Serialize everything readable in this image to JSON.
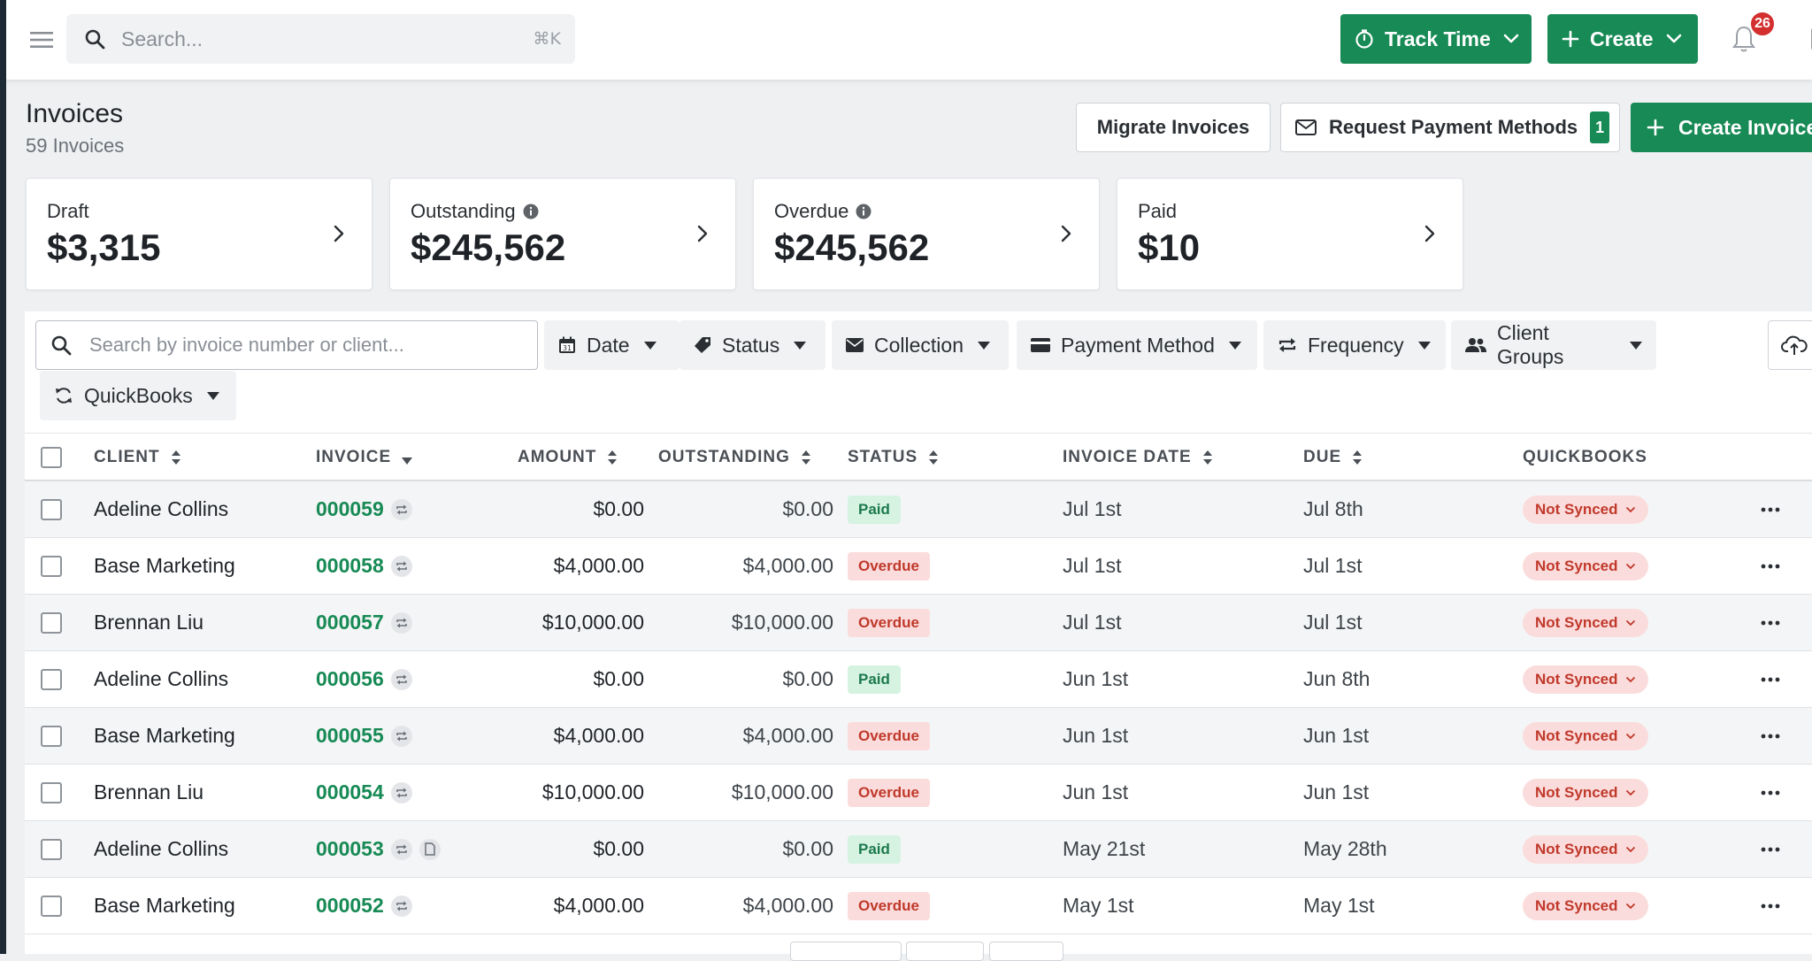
{
  "topbar": {
    "search_placeholder": "Search...",
    "search_shortcut": "⌘K",
    "track_time_label": "Track Time",
    "create_label": "Create",
    "notification_count": "26"
  },
  "header": {
    "title": "Invoices",
    "subtitle": "59 Invoices",
    "migrate_label": "Migrate Invoices",
    "request_label": "Request Payment Methods",
    "request_count": "1",
    "create_invoice_label": "Create Invoice"
  },
  "cards": [
    {
      "label": "Draft",
      "value": "$3,315",
      "info": false
    },
    {
      "label": "Outstanding",
      "value": "$245,562",
      "info": true
    },
    {
      "label": "Overdue",
      "value": "$245,562",
      "info": true
    },
    {
      "label": "Paid",
      "value": "$10",
      "info": false
    }
  ],
  "filters": {
    "search_placeholder": "Search by invoice number or client...",
    "chips": {
      "date": "Date",
      "status": "Status",
      "collection": "Collection",
      "payment_method": "Payment Method",
      "frequency": "Frequency",
      "client_groups": "Client Groups",
      "quickbooks": "QuickBooks"
    }
  },
  "table": {
    "columns": {
      "client": "CLIENT",
      "invoice": "INVOICE",
      "amount": "AMOUNT",
      "outstanding": "OUTSTANDING",
      "status": "STATUS",
      "invoice_date": "INVOICE DATE",
      "due": "DUE",
      "quickbooks": "QUICKBOOKS"
    },
    "rows": [
      {
        "client": "Adeline Collins",
        "invoice": "000059",
        "amount": "$0.00",
        "outstanding": "$0.00",
        "status": "Paid",
        "invoice_date": "Jul 1st",
        "due": "Jul 8th",
        "quickbooks": "Not Synced",
        "has_doc": false
      },
      {
        "client": "Base Marketing",
        "invoice": "000058",
        "amount": "$4,000.00",
        "outstanding": "$4,000.00",
        "status": "Overdue",
        "invoice_date": "Jul 1st",
        "due": "Jul 1st",
        "quickbooks": "Not Synced",
        "has_doc": false
      },
      {
        "client": "Brennan Liu",
        "invoice": "000057",
        "amount": "$10,000.00",
        "outstanding": "$10,000.00",
        "status": "Overdue",
        "invoice_date": "Jul 1st",
        "due": "Jul 1st",
        "quickbooks": "Not Synced",
        "has_doc": false
      },
      {
        "client": "Adeline Collins",
        "invoice": "000056",
        "amount": "$0.00",
        "outstanding": "$0.00",
        "status": "Paid",
        "invoice_date": "Jun 1st",
        "due": "Jun 8th",
        "quickbooks": "Not Synced",
        "has_doc": false
      },
      {
        "client": "Base Marketing",
        "invoice": "000055",
        "amount": "$4,000.00",
        "outstanding": "$4,000.00",
        "status": "Overdue",
        "invoice_date": "Jun 1st",
        "due": "Jun 1st",
        "quickbooks": "Not Synced",
        "has_doc": false
      },
      {
        "client": "Brennan Liu",
        "invoice": "000054",
        "amount": "$10,000.00",
        "outstanding": "$10,000.00",
        "status": "Overdue",
        "invoice_date": "Jun 1st",
        "due": "Jun 1st",
        "quickbooks": "Not Synced",
        "has_doc": false
      },
      {
        "client": "Adeline Collins",
        "invoice": "000053",
        "amount": "$0.00",
        "outstanding": "$0.00",
        "status": "Paid",
        "invoice_date": "May 21st",
        "due": "May 28th",
        "quickbooks": "Not Synced",
        "has_doc": true
      },
      {
        "client": "Base Marketing",
        "invoice": "000052",
        "amount": "$4,000.00",
        "outstanding": "$4,000.00",
        "status": "Overdue",
        "invoice_date": "May 1st",
        "due": "May 1st",
        "quickbooks": "Not Synced",
        "has_doc": false
      }
    ]
  },
  "colors": {
    "brand_green": "#178a55",
    "overdue_red": "#c0392b",
    "paid_green": "#1c7a4d",
    "badge_red": "#d32f2f"
  },
  "icons": [
    "hamburger-icon",
    "search-icon",
    "stopwatch-icon",
    "plus-icon",
    "chevron-down-icon",
    "bell-icon",
    "envelope-icon",
    "info-icon",
    "chevron-right-icon",
    "calendar-icon",
    "tag-icon",
    "money-icon",
    "credit-card-icon",
    "repeat-icon",
    "users-icon",
    "sync-icon",
    "cloud-upload-icon",
    "sort-icon",
    "more-icon",
    "document-icon"
  ]
}
